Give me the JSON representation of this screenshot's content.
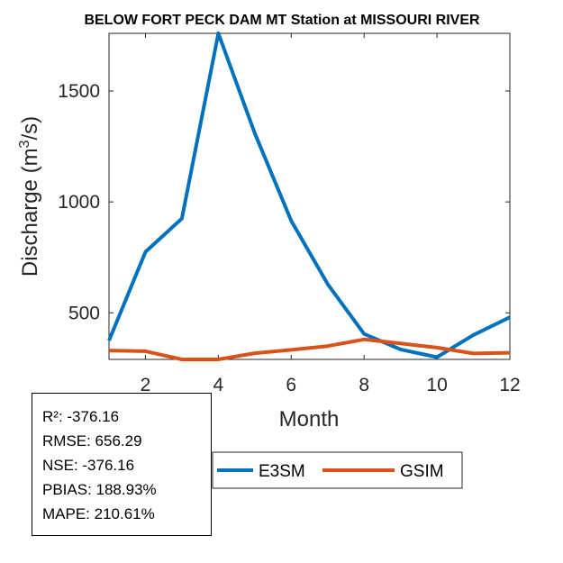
{
  "chart_data": {
    "type": "line",
    "title": "BELOW FORT PECK DAM MT  Station at  MISSOURI RIVER",
    "xlabel": "Month",
    "ylabel_main": "Discharge (m",
    "ylabel_sup": "3",
    "ylabel_tail": "/s)",
    "xlim": [
      1,
      12
    ],
    "ylim": [
      290,
      1760
    ],
    "xticks": [
      2,
      4,
      6,
      8,
      10,
      12
    ],
    "yticks": [
      500,
      1000,
      1500
    ],
    "x": [
      1,
      2,
      3,
      4,
      5,
      6,
      7,
      8,
      9,
      10,
      11,
      12
    ],
    "series": [
      {
        "name": "E3SM",
        "color": "#0072BD",
        "values": [
          375,
          775,
          925,
          1760,
          1310,
          915,
          630,
          405,
          335,
          300,
          400,
          480
        ]
      },
      {
        "name": "GSIM",
        "color": "#D95319",
        "values": [
          330,
          327,
          290,
          290,
          318,
          333,
          350,
          380,
          362,
          343,
          317,
          320
        ]
      }
    ]
  },
  "stats": {
    "r2": "R²: -376.16",
    "rmse": "RMSE: 656.29",
    "nse": "NSE: -376.16",
    "pbias": "PBIAS: 188.93%",
    "mape": "MAPE: 210.61%"
  }
}
